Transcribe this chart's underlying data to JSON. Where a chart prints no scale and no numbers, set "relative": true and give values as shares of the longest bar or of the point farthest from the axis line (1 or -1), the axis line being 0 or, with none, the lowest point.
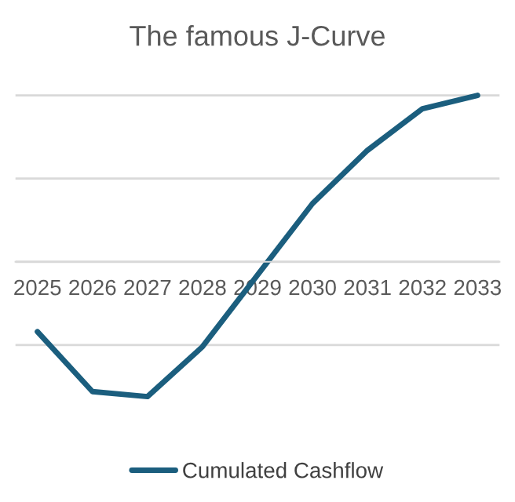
{
  "chart_data": {
    "type": "line",
    "title": "The famous J-Curve",
    "relative": true,
    "categories": [
      "2025",
      "2026",
      "2027",
      "2028",
      "2029",
      "2030",
      "2031",
      "2032",
      "2033"
    ],
    "series": [
      {
        "name": "Cumulated Cashflow",
        "color": "#1b5e7e",
        "values": [
          -0.42,
          -0.78,
          -0.81,
          -0.51,
          -0.08,
          0.35,
          0.67,
          0.92,
          1.0
        ]
      }
    ],
    "grid": "y",
    "legend": "bottom",
    "marker": "none",
    "line_style": "solid"
  }
}
